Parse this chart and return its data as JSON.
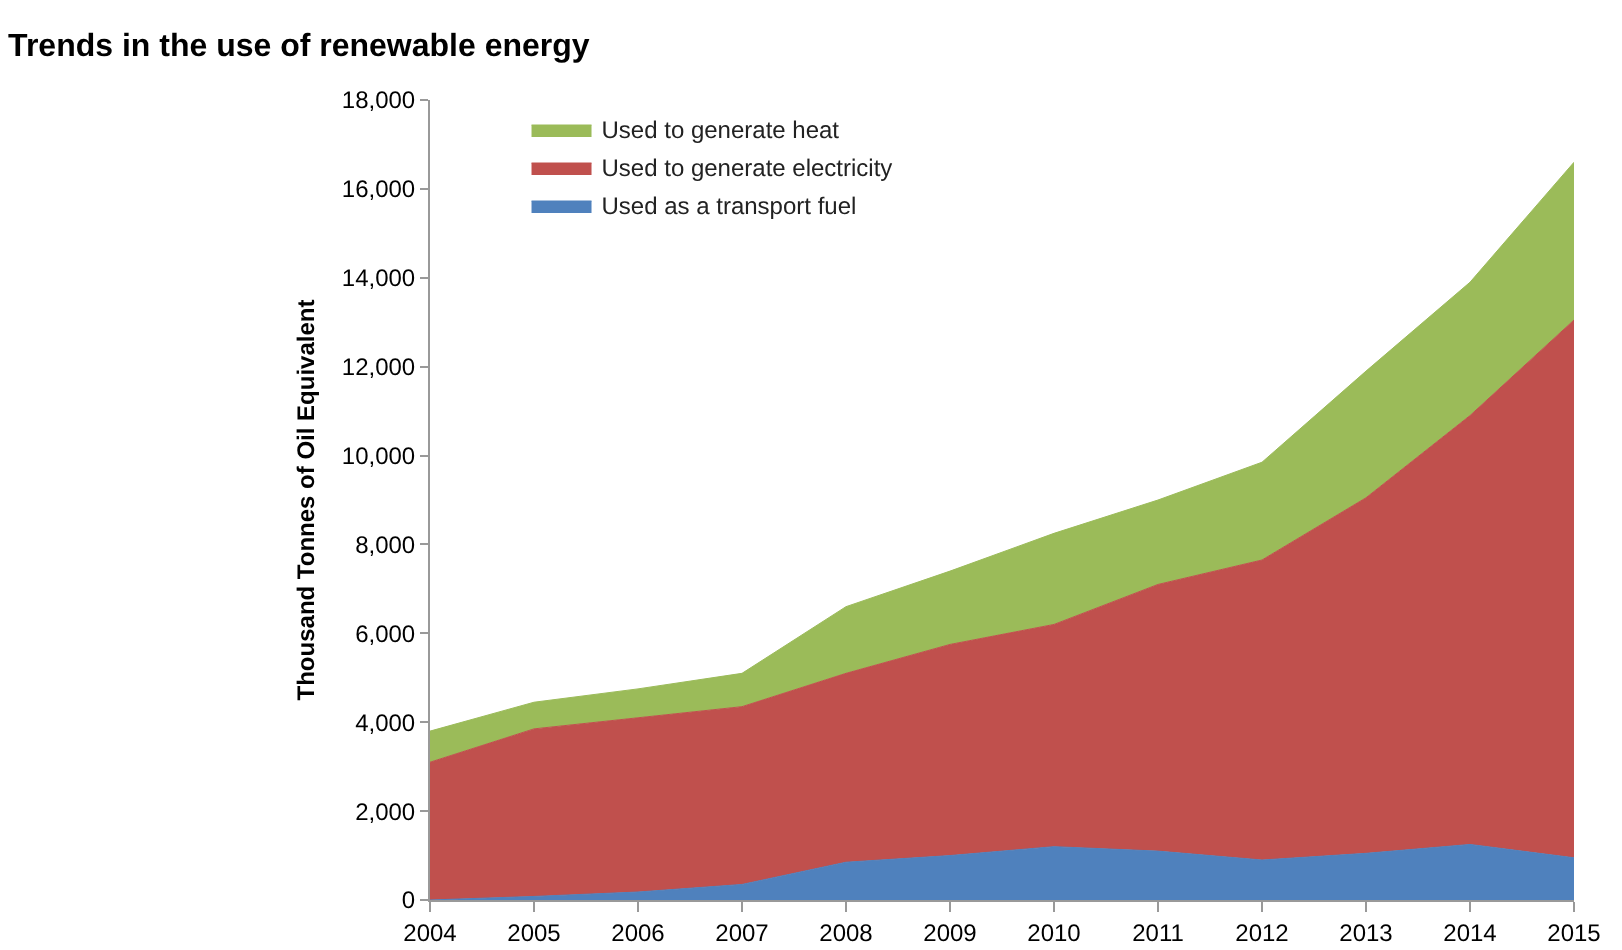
{
  "chart_data": {
    "type": "area",
    "stacked": true,
    "title": "Trends in the use of renewable energy",
    "ylabel": "Thousand Tonnes of Oil Equivalent",
    "x": [
      2004,
      2005,
      2006,
      2007,
      2008,
      2009,
      2010,
      2011,
      2012,
      2013,
      2014,
      2015
    ],
    "series": [
      {
        "name": "Used as a transport fuel",
        "color": "#4f81bd",
        "values": [
          0,
          80,
          180,
          350,
          850,
          1000,
          1200,
          1100,
          900,
          1050,
          1250,
          950
        ]
      },
      {
        "name": "Used to generate electricity",
        "color": "#c0504d",
        "values": [
          3100,
          3770,
          3920,
          4000,
          4250,
          4750,
          5000,
          6000,
          6750,
          8000,
          9650,
          12100
        ]
      },
      {
        "name": "Used to generate heat",
        "color": "#9bbb59",
        "values": [
          700,
          600,
          650,
          750,
          1500,
          1650,
          2050,
          1900,
          2200,
          2850,
          3000,
          3550
        ]
      }
    ],
    "xlim": [
      2004,
      2015
    ],
    "xticks": [
      2004,
      2005,
      2006,
      2007,
      2008,
      2009,
      2010,
      2011,
      2012,
      2013,
      2014,
      2015
    ],
    "ylim": [
      0,
      18000
    ],
    "yticks": [
      {
        "value": 0,
        "label": "0"
      },
      {
        "value": 2000,
        "label": "2,000"
      },
      {
        "value": 4000,
        "label": "4,000"
      },
      {
        "value": 6000,
        "label": "6,000"
      },
      {
        "value": 8000,
        "label": "8,000"
      },
      {
        "value": 10000,
        "label": "10,000"
      },
      {
        "value": 12000,
        "label": "12,000"
      },
      {
        "value": 14000,
        "label": "14,000"
      },
      {
        "value": 16000,
        "label": "16,000"
      },
      {
        "value": 18000,
        "label": "18,000"
      }
    ],
    "grid": false,
    "legend": "top left"
  }
}
